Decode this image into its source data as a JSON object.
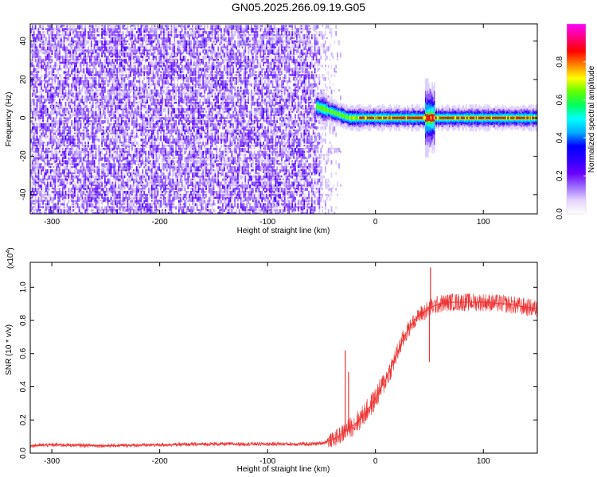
{
  "title": "GN05.2025.266.09.19.G05",
  "chart_data": [
    {
      "type": "heatmap",
      "name": "spectrogram",
      "xlabel": "Height of straight line (km)",
      "ylabel": "Frequency (Hz)",
      "xlim": [
        -320,
        150
      ],
      "ylim": [
        -50,
        49
      ],
      "xticks": [
        -300,
        -200,
        -100,
        0,
        100
      ],
      "xtick_labels": [
        "-300",
        "-200",
        "-100",
        "0",
        "100"
      ],
      "yticks": [
        -40,
        -20,
        0,
        20,
        40
      ],
      "ytick_labels": [
        "-40",
        "-20",
        "0",
        "20",
        "40"
      ],
      "noise_region_x": [
        -320,
        -40
      ],
      "signal_start_x": -55,
      "signal_frequency_hz": 0,
      "signal_start_frequency_hz": 6,
      "colorbar": {
        "label": "Normalized spectral amplitude",
        "range": [
          0,
          1
        ],
        "ticks": [
          0,
          0.2,
          0.4,
          0.6,
          0.8
        ],
        "tick_labels": [
          "0.0",
          "0.2",
          "0.4",
          "0.6",
          "0.8"
        ],
        "colors": [
          "#ffffff",
          "#e6d2ff",
          "#9a6cff",
          "#6a00ff",
          "#2a00ff",
          "#0000ff",
          "#00b0ff",
          "#00ffff",
          "#00ff60",
          "#60ff00",
          "#ffff00",
          "#ff8000",
          "#ff0000",
          "#ff0080",
          "#ff00ff"
        ]
      }
    },
    {
      "type": "line",
      "name": "snr",
      "xlabel": "Height of straight line (km)",
      "ylabel": "SNR (10 * v/v)",
      "y_scale_label": "(x10",
      "y_scale_exponent": "4",
      "xlim": [
        -320,
        150
      ],
      "ylim": [
        0,
        1.15
      ],
      "xticks": [
        -300,
        -200,
        -100,
        0,
        100
      ],
      "xtick_labels": [
        "-300",
        "-200",
        "-100",
        "0",
        "100"
      ],
      "yticks": [
        0.0,
        0.2,
        0.4,
        0.6,
        0.8,
        1.0
      ],
      "ytick_labels": [
        "0.0",
        "0.2",
        "0.4",
        "0.6",
        "0.8",
        "1.0"
      ],
      "color": "#ee3333",
      "x": [
        -320,
        -300,
        -250,
        -200,
        -150,
        -100,
        -75,
        -60,
        -50,
        -45,
        -40,
        -35,
        -30,
        -25,
        -20,
        -15,
        -10,
        -5,
        0,
        5,
        10,
        15,
        20,
        25,
        30,
        35,
        40,
        45,
        50,
        55,
        60,
        70,
        80,
        90,
        100,
        110,
        120,
        130,
        140,
        150
      ],
      "values": [
        0.045,
        0.05,
        0.045,
        0.05,
        0.055,
        0.055,
        0.055,
        0.055,
        0.06,
        0.07,
        0.08,
        0.1,
        0.12,
        0.15,
        0.17,
        0.2,
        0.24,
        0.28,
        0.33,
        0.39,
        0.45,
        0.52,
        0.6,
        0.68,
        0.74,
        0.79,
        0.83,
        0.85,
        0.87,
        0.89,
        0.9,
        0.91,
        0.91,
        0.91,
        0.91,
        0.905,
        0.9,
        0.89,
        0.88,
        0.87
      ],
      "spikes": [
        {
          "x": -28,
          "value": 0.62
        },
        {
          "x": -25,
          "value": 0.49
        },
        {
          "x": 50,
          "value": 0.55
        },
        {
          "x": 51,
          "value": 1.12
        }
      ]
    }
  ]
}
